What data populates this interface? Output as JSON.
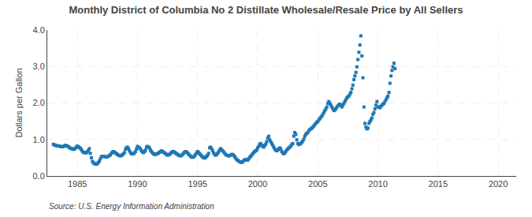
{
  "chart_data": {
    "type": "scatter",
    "title": "Monthly District of Columbia No 2 Distillate Wholesale/Resale Price by All Sellers",
    "y_label": "Dollars per Gallon",
    "annotations": [
      "Source: U.S. Energy Information Administration"
    ],
    "marker": "square",
    "grid": true,
    "xlim": [
      1982.5,
      2021.5
    ],
    "xticks": [
      1985,
      1990,
      1995,
      2000,
      2005,
      2010,
      2015,
      2020
    ],
    "ylim": [
      0.0,
      4.0
    ],
    "yticks": [
      {
        "value": 0.0,
        "label": "0.0"
      },
      {
        "value": 1.0,
        "label": "1.0"
      },
      {
        "value": 2.0,
        "label": "2.0"
      },
      {
        "value": 3.0,
        "label": "3.0"
      },
      {
        "value": 4.0,
        "label": "4.0"
      }
    ],
    "x": [
      1983.0,
      1983.083,
      1983.167,
      1983.25,
      1983.333,
      1983.417,
      1983.5,
      1983.583,
      1983.667,
      1983.75,
      1983.833,
      1983.917,
      1984.0,
      1984.083,
      1984.167,
      1984.25,
      1984.333,
      1984.417,
      1984.5,
      1984.583,
      1984.667,
      1984.75,
      1984.833,
      1984.917,
      1985.0,
      1985.083,
      1985.167,
      1985.25,
      1985.333,
      1985.417,
      1985.5,
      1985.583,
      1985.667,
      1985.75,
      1985.833,
      1985.917,
      1986.0,
      1986.083,
      1986.167,
      1986.25,
      1986.333,
      1986.417,
      1986.5,
      1986.583,
      1986.667,
      1986.75,
      1986.833,
      1986.917,
      1987.0,
      1987.083,
      1987.167,
      1987.25,
      1987.333,
      1987.417,
      1987.5,
      1987.583,
      1987.667,
      1987.75,
      1987.833,
      1987.917,
      1988.0,
      1988.083,
      1988.167,
      1988.25,
      1988.333,
      1988.417,
      1988.5,
      1988.583,
      1988.667,
      1988.75,
      1988.833,
      1988.917,
      1989.0,
      1989.083,
      1989.167,
      1989.25,
      1989.333,
      1989.417,
      1989.5,
      1989.583,
      1989.667,
      1989.75,
      1989.833,
      1989.917,
      1990.0,
      1990.083,
      1990.167,
      1990.25,
      1990.333,
      1990.417,
      1990.5,
      1990.583,
      1990.667,
      1990.75,
      1990.833,
      1990.917,
      1991.0,
      1991.083,
      1991.167,
      1991.25,
      1991.333,
      1991.417,
      1991.5,
      1991.583,
      1991.667,
      1991.75,
      1991.833,
      1991.917,
      1992.0,
      1992.083,
      1992.167,
      1992.25,
      1992.333,
      1992.417,
      1992.5,
      1992.583,
      1992.667,
      1992.75,
      1992.833,
      1992.917,
      1993.0,
      1993.083,
      1993.167,
      1993.25,
      1993.333,
      1993.417,
      1993.5,
      1993.583,
      1993.667,
      1993.75,
      1993.833,
      1993.917,
      1994.0,
      1994.083,
      1994.167,
      1994.25,
      1994.333,
      1994.417,
      1994.5,
      1994.583,
      1994.667,
      1994.75,
      1994.833,
      1994.917,
      1995.0,
      1995.083,
      1995.167,
      1995.25,
      1995.333,
      1995.417,
      1995.5,
      1995.583,
      1995.667,
      1995.75,
      1995.833,
      1995.917,
      1996.0,
      1996.083,
      1996.167,
      1996.25,
      1996.333,
      1996.417,
      1996.5,
      1996.583,
      1996.667,
      1996.75,
      1996.833,
      1996.917,
      1997.0,
      1997.083,
      1997.167,
      1997.25,
      1997.333,
      1997.417,
      1997.5,
      1997.583,
      1997.667,
      1997.75,
      1997.833,
      1997.917,
      1998.0,
      1998.083,
      1998.167,
      1998.25,
      1998.333,
      1998.417,
      1998.5,
      1998.583,
      1998.667,
      1998.75,
      1998.833,
      1998.917,
      1999.0,
      1999.083,
      1999.167,
      1999.25,
      1999.333,
      1999.417,
      1999.5,
      1999.583,
      1999.667,
      1999.75,
      1999.833,
      1999.917,
      2000.0,
      2000.083,
      2000.167,
      2000.25,
      2000.333,
      2000.417,
      2000.5,
      2000.583,
      2000.667,
      2000.75,
      2000.833,
      2000.917,
      2001.0,
      2001.083,
      2001.167,
      2001.25,
      2001.333,
      2001.417,
      2001.5,
      2001.583,
      2001.667,
      2001.75,
      2001.833,
      2001.917,
      2002.0,
      2002.083,
      2002.167,
      2002.25,
      2002.333,
      2002.417,
      2002.5,
      2002.583,
      2002.667,
      2002.75,
      2002.833,
      2002.917,
      2003.0,
      2003.083,
      2003.167,
      2003.25,
      2003.333,
      2003.417,
      2003.5,
      2003.583,
      2003.667,
      2003.75,
      2003.833,
      2003.917,
      2004.0,
      2004.083,
      2004.167,
      2004.25,
      2004.333,
      2004.417,
      2004.5,
      2004.583,
      2004.667,
      2004.75,
      2004.833,
      2004.917,
      2005.0,
      2005.083,
      2005.167,
      2005.25,
      2005.333,
      2005.417,
      2005.5,
      2005.583,
      2005.667,
      2005.75,
      2005.833,
      2005.917,
      2006.0,
      2006.083,
      2006.167,
      2006.25,
      2006.333,
      2006.417,
      2006.5,
      2006.583,
      2006.667,
      2006.75,
      2006.833,
      2006.917,
      2007.0,
      2007.083,
      2007.167,
      2007.25,
      2007.333,
      2007.417,
      2007.5,
      2007.583,
      2007.667,
      2007.75,
      2007.833,
      2007.917,
      2008.0,
      2008.083,
      2008.167,
      2008.25,
      2008.333,
      2008.417,
      2008.5,
      2008.583,
      2008.667,
      2008.75,
      2008.833,
      2008.917,
      2009.0,
      2009.083,
      2009.167,
      2009.25,
      2009.333,
      2009.417,
      2009.5,
      2009.583,
      2009.667,
      2009.75,
      2009.833,
      2009.917,
      2010.0,
      2010.083,
      2010.167,
      2010.25,
      2010.333,
      2010.417,
      2010.5,
      2010.583,
      2010.667,
      2010.75,
      2010.833,
      2010.917,
      2011.0,
      2011.083,
      2011.167,
      2011.25,
      2011.333,
      2011.417
    ],
    "values": [
      0.87,
      0.85,
      0.84,
      0.83,
      0.83,
      0.82,
      0.82,
      0.81,
      0.8,
      0.8,
      0.81,
      0.82,
      0.84,
      0.83,
      0.82,
      0.8,
      0.78,
      0.76,
      0.75,
      0.74,
      0.73,
      0.74,
      0.76,
      0.79,
      0.82,
      0.8,
      0.78,
      0.76,
      0.72,
      0.68,
      0.65,
      0.64,
      0.63,
      0.64,
      0.66,
      0.7,
      0.75,
      0.62,
      0.5,
      0.4,
      0.36,
      0.34,
      0.33,
      0.32,
      0.34,
      0.37,
      0.41,
      0.47,
      0.53,
      0.54,
      0.54,
      0.53,
      0.52,
      0.52,
      0.53,
      0.54,
      0.56,
      0.58,
      0.62,
      0.65,
      0.67,
      0.65,
      0.63,
      0.61,
      0.59,
      0.57,
      0.56,
      0.55,
      0.56,
      0.58,
      0.61,
      0.64,
      0.73,
      0.77,
      0.79,
      0.75,
      0.69,
      0.64,
      0.61,
      0.6,
      0.61,
      0.63,
      0.67,
      0.74,
      0.81,
      0.79,
      0.77,
      0.74,
      0.69,
      0.66,
      0.64,
      0.67,
      0.71,
      0.79,
      0.81,
      0.79,
      0.77,
      0.71,
      0.67,
      0.63,
      0.61,
      0.59,
      0.59,
      0.6,
      0.61,
      0.63,
      0.65,
      0.67,
      0.69,
      0.67,
      0.65,
      0.63,
      0.61,
      0.59,
      0.57,
      0.58,
      0.59,
      0.62,
      0.64,
      0.67,
      0.67,
      0.65,
      0.63,
      0.61,
      0.59,
      0.57,
      0.56,
      0.55,
      0.56,
      0.59,
      0.62,
      0.65,
      0.67,
      0.65,
      0.63,
      0.6,
      0.57,
      0.54,
      0.52,
      0.51,
      0.52,
      0.55,
      0.59,
      0.63,
      0.67,
      0.64,
      0.61,
      0.58,
      0.55,
      0.52,
      0.5,
      0.49,
      0.51,
      0.54,
      0.57,
      0.62,
      0.77,
      0.79,
      0.75,
      0.69,
      0.63,
      0.59,
      0.57,
      0.59,
      0.62,
      0.66,
      0.71,
      0.75,
      0.71,
      0.69,
      0.66,
      0.62,
      0.59,
      0.57,
      0.56,
      0.55,
      0.56,
      0.57,
      0.59,
      0.59,
      0.57,
      0.53,
      0.49,
      0.45,
      0.43,
      0.41,
      0.39,
      0.38,
      0.37,
      0.39,
      0.42,
      0.44,
      0.45,
      0.44,
      0.43,
      0.47,
      0.51,
      0.54,
      0.57,
      0.61,
      0.64,
      0.67,
      0.69,
      0.71,
      0.77,
      0.81,
      0.87,
      0.89,
      0.84,
      0.81,
      0.79,
      0.84,
      0.87,
      0.94,
      1.04,
      1.09,
      0.99,
      0.94,
      0.89,
      0.84,
      0.79,
      0.74,
      0.71,
      0.69,
      0.71,
      0.74,
      0.77,
      0.74,
      0.67,
      0.63,
      0.61,
      0.63,
      0.67,
      0.71,
      0.74,
      0.77,
      0.79,
      0.82,
      0.86,
      0.89,
      1.09,
      1.19,
      1.14,
      0.99,
      0.89,
      0.86,
      0.87,
      0.89,
      0.92,
      0.96,
      1.01,
      1.09,
      1.14,
      1.17,
      1.19,
      1.24,
      1.27,
      1.29,
      1.31,
      1.34,
      1.37,
      1.41,
      1.44,
      1.47,
      1.49,
      1.54,
      1.57,
      1.61,
      1.64,
      1.69,
      1.74,
      1.79,
      1.84,
      1.89,
      1.99,
      2.04,
      1.99,
      1.94,
      1.89,
      1.84,
      1.79,
      1.81,
      1.84,
      1.89,
      1.92,
      1.95,
      1.97,
      1.94,
      1.89,
      1.94,
      1.99,
      2.04,
      2.09,
      2.14,
      2.17,
      2.19,
      2.24,
      2.29,
      2.39,
      2.49,
      2.64,
      2.74,
      2.84,
      2.99,
      3.19,
      3.39,
      3.59,
      3.84,
      3.29,
      2.69,
      1.89,
      1.44,
      1.34,
      1.29,
      1.31,
      1.44,
      1.49,
      1.54,
      1.59,
      1.69,
      1.74,
      1.84,
      1.94,
      2.04,
      1.89,
      1.89,
      1.87,
      1.91,
      1.94,
      1.97,
      1.99,
      2.04,
      2.09,
      2.14,
      2.19,
      2.29,
      2.54,
      2.74,
      2.89,
      2.99,
      3.09,
      2.94
    ]
  }
}
